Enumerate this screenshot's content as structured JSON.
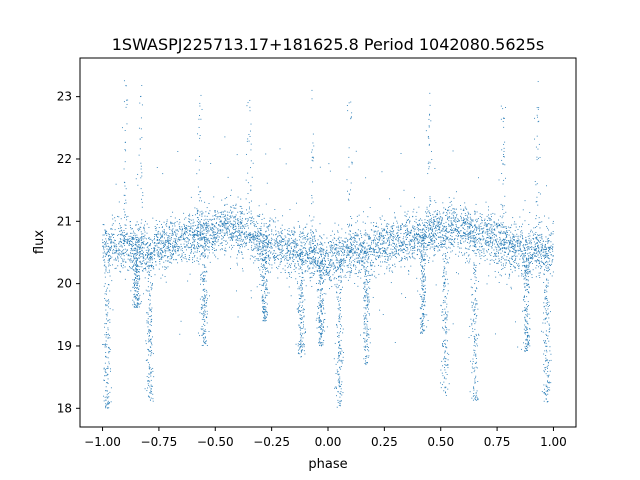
{
  "chart_data": {
    "type": "scatter",
    "title": "1SWASPJ225713.17+181625.8 Period 1042080.5625s",
    "xlabel": "phase",
    "ylabel": "flux",
    "xlim": [
      -1.1,
      1.1
    ],
    "ylim": [
      17.7,
      23.62
    ],
    "xticks": [
      -1.0,
      -0.75,
      -0.5,
      -0.25,
      0.0,
      0.25,
      0.5,
      0.75,
      1.0
    ],
    "xtick_labels": [
      "−1.00",
      "−0.75",
      "−0.50",
      "−0.25",
      "0.00",
      "0.25",
      "0.50",
      "0.75",
      "1.00"
    ],
    "yticks": [
      18,
      19,
      20,
      21,
      22,
      23
    ],
    "ytick_labels": [
      "18",
      "19",
      "20",
      "21",
      "22",
      "23"
    ],
    "grid": false,
    "legend": "none",
    "marker_color": "#1f77b4",
    "series": [
      {
        "profile": {
          "phase": [
            -1.0,
            -0.9,
            -0.8,
            -0.7,
            -0.6,
            -0.5,
            -0.45,
            -0.4,
            -0.3,
            -0.2,
            -0.1,
            0.0,
            0.1,
            0.2,
            0.3,
            0.4,
            0.5,
            0.55,
            0.6,
            0.7,
            0.8,
            0.9,
            1.0
          ],
          "flux": [
            20.6,
            20.6,
            20.5,
            20.65,
            20.75,
            20.85,
            20.9,
            20.85,
            20.7,
            20.6,
            20.5,
            20.35,
            20.5,
            20.6,
            20.65,
            20.75,
            20.85,
            20.9,
            20.85,
            20.75,
            20.6,
            20.5,
            20.55
          ]
        },
        "dips": [
          {
            "phase": -0.98,
            "min_flux": 18.0
          },
          {
            "phase": -0.85,
            "min_flux": 19.6
          },
          {
            "phase": -0.79,
            "min_flux": 18.1
          },
          {
            "phase": -0.55,
            "min_flux": 19.0
          },
          {
            "phase": -0.28,
            "min_flux": 19.4
          },
          {
            "phase": -0.12,
            "min_flux": 18.8
          },
          {
            "phase": -0.03,
            "min_flux": 19.0
          },
          {
            "phase": 0.05,
            "min_flux": 18.0
          },
          {
            "phase": 0.17,
            "min_flux": 18.7
          },
          {
            "phase": 0.42,
            "min_flux": 19.2
          },
          {
            "phase": 0.52,
            "min_flux": 18.2
          },
          {
            "phase": 0.65,
            "min_flux": 18.1
          },
          {
            "phase": 0.88,
            "min_flux": 18.9
          },
          {
            "phase": 0.97,
            "min_flux": 18.1
          }
        ],
        "flares": [
          {
            "phase": -0.9,
            "max_flux": 23.3
          },
          {
            "phase": -0.83,
            "max_flux": 23.3
          },
          {
            "phase": -0.57,
            "max_flux": 23.1
          },
          {
            "phase": -0.35,
            "max_flux": 23.0
          },
          {
            "phase": -0.07,
            "max_flux": 23.3
          },
          {
            "phase": 0.1,
            "max_flux": 23.0
          },
          {
            "phase": 0.45,
            "max_flux": 23.1
          },
          {
            "phase": 0.78,
            "max_flux": 22.9
          },
          {
            "phase": 0.93,
            "max_flux": 23.3
          }
        ]
      }
    ]
  }
}
